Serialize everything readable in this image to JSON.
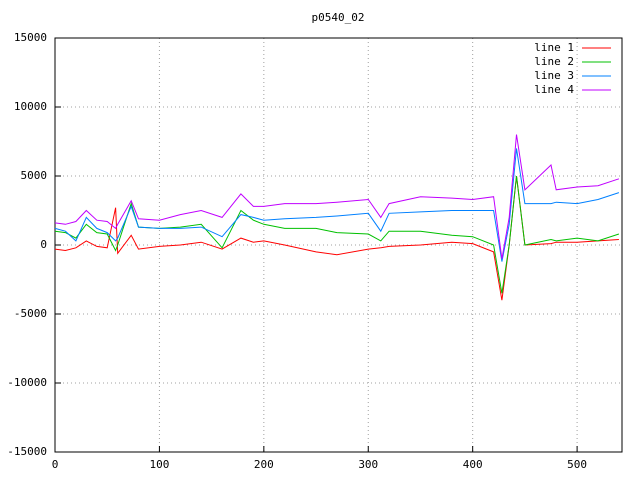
{
  "chart_data": {
    "type": "line",
    "title": "p0540_02",
    "x": [
      0,
      10,
      20,
      30,
      40,
      50,
      58,
      60,
      73,
      80,
      100,
      120,
      140,
      160,
      178,
      190,
      200,
      220,
      250,
      270,
      300,
      312,
      320,
      350,
      380,
      400,
      420,
      428,
      435,
      442,
      450,
      475,
      480,
      500,
      520,
      540
    ],
    "series": [
      {
        "name": "line 1",
        "color": "#ff0000",
        "values": [
          -300,
          -400,
          -200,
          300,
          -100,
          -200,
          2700,
          -600,
          700,
          -300,
          -100,
          0,
          200,
          -300,
          500,
          200,
          300,
          0,
          -500,
          -700,
          -300,
          -200,
          -100,
          0,
          200,
          100,
          -500,
          -4000,
          0,
          5000,
          0,
          100,
          200,
          200,
          300,
          400
        ]
      },
      {
        "name": "line 2",
        "color": "#00c000",
        "values": [
          1000,
          900,
          500,
          1500,
          900,
          800,
          -400,
          0,
          3000,
          1300,
          1200,
          1300,
          1500,
          -200,
          2500,
          1800,
          1500,
          1200,
          1200,
          900,
          800,
          300,
          1000,
          1000,
          700,
          600,
          0,
          -3500,
          0,
          5000,
          0,
          400,
          300,
          500,
          300,
          800
        ]
      },
      {
        "name": "line 3",
        "color": "#0080ff",
        "values": [
          1200,
          1000,
          300,
          2000,
          1200,
          900,
          300,
          500,
          2800,
          1300,
          1200,
          1200,
          1300,
          600,
          2200,
          2000,
          1800,
          1900,
          2000,
          2100,
          2300,
          1000,
          2300,
          2400,
          2500,
          2500,
          2500,
          -1200,
          1500,
          7000,
          3000,
          3000,
          3100,
          3000,
          3300,
          3800
        ]
      },
      {
        "name": "line 4",
        "color": "#c000ff",
        "values": [
          1600,
          1500,
          1700,
          2500,
          1800,
          1700,
          1200,
          1500,
          3200,
          1900,
          1800,
          2200,
          2500,
          2000,
          3700,
          2800,
          2800,
          3000,
          3000,
          3100,
          3300,
          2000,
          3000,
          3500,
          3400,
          3300,
          3500,
          -1000,
          2000,
          8000,
          4000,
          5800,
          4000,
          4200,
          4300,
          4800
        ]
      }
    ],
    "xlim": [
      0,
      543
    ],
    "xticks": [
      0,
      100,
      200,
      300,
      400,
      500
    ],
    "ylim": [
      -15000,
      15000
    ],
    "yticks": [
      -15000,
      -10000,
      -5000,
      0,
      5000,
      10000,
      15000
    ],
    "grid": true,
    "legend": "top-right"
  }
}
